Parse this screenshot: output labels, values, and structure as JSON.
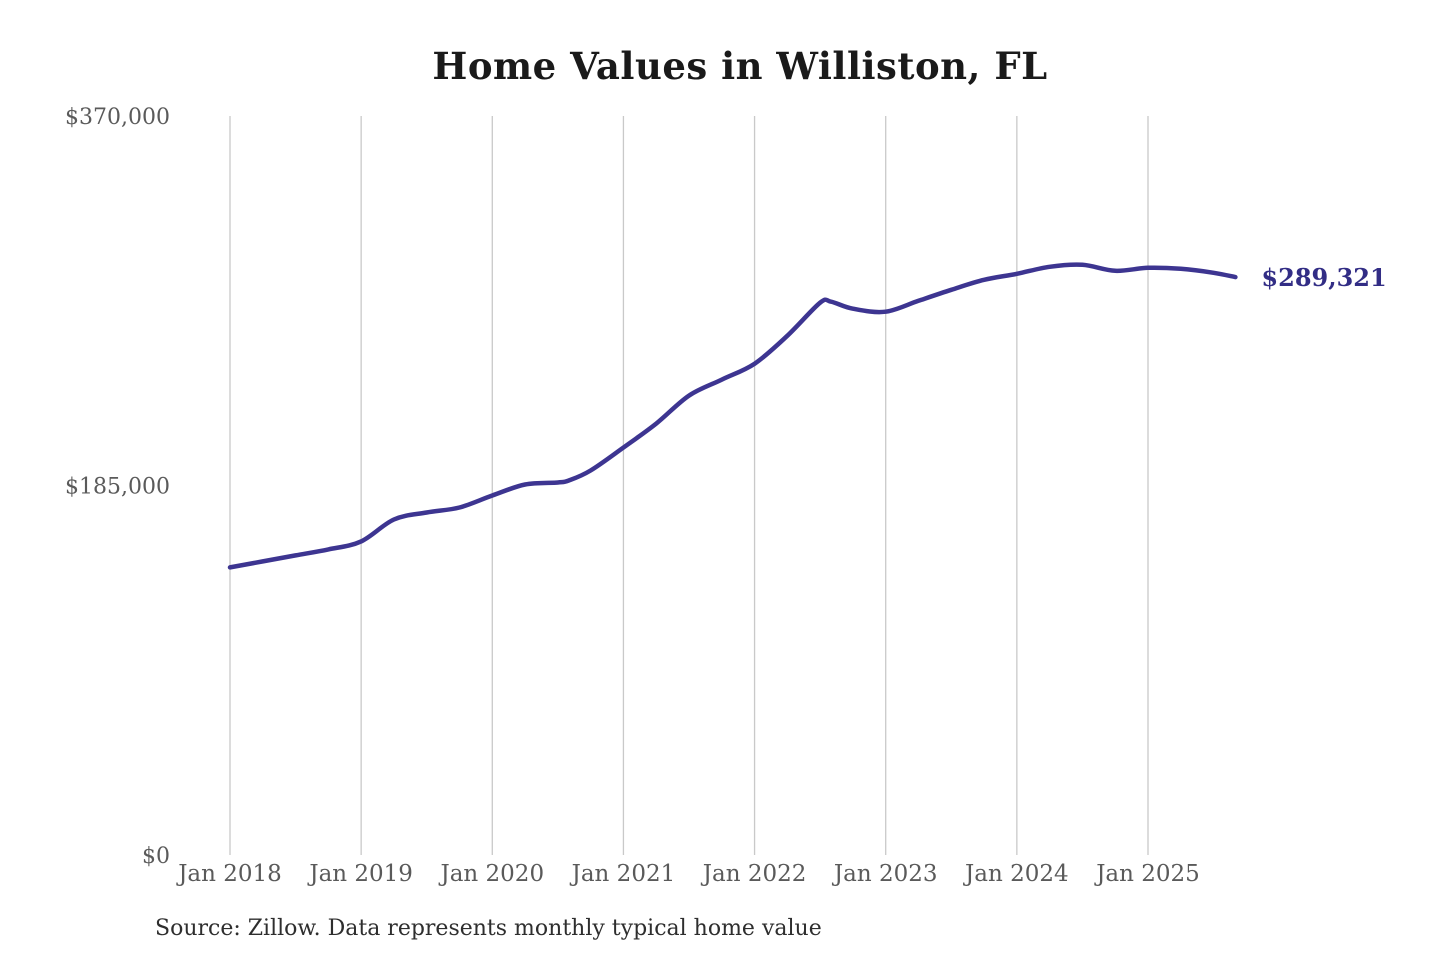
{
  "colors": {
    "background": "#ffffff",
    "title": "#1a1a1a",
    "tick_label": "#5a5a5a",
    "gridline": "#c9c9c9",
    "line": "#3d3591",
    "end_label": "#322d85",
    "source": "#2e2e2e"
  },
  "chart_data": {
    "type": "line",
    "title": "Home Values in Williston, FL",
    "xlabel": "",
    "ylabel": "",
    "ylim": [
      0,
      370000
    ],
    "x_range": [
      "2018-01",
      "2025-09"
    ],
    "grid": "vertical-only",
    "legend": "none",
    "line_color": "#3d3591",
    "end_label": {
      "text": "$289,321",
      "color": "#322d85"
    },
    "source_note": "Source: Zillow. Data represents monthly typical home value",
    "y_ticks": [
      {
        "label": "$370,000",
        "value": 370000
      },
      {
        "label": "$185,000",
        "value": 185000
      },
      {
        "label": "$0",
        "value": 0
      }
    ],
    "x_ticks": [
      {
        "label": "Jan 2018",
        "date": "2018-01"
      },
      {
        "label": "Jan 2019",
        "date": "2019-01"
      },
      {
        "label": "Jan 2020",
        "date": "2020-01"
      },
      {
        "label": "Jan 2021",
        "date": "2021-01"
      },
      {
        "label": "Jan 2022",
        "date": "2022-01"
      },
      {
        "label": "Jan 2023",
        "date": "2023-01"
      },
      {
        "label": "Jan 2024",
        "date": "2024-01"
      },
      {
        "label": "Jan 2025",
        "date": "2025-01"
      }
    ],
    "series": [
      {
        "name": "Monthly typical home value",
        "points": [
          [
            "2018-01",
            144000
          ],
          [
            "2018-04",
            147000
          ],
          [
            "2018-07",
            150000
          ],
          [
            "2018-10",
            153000
          ],
          [
            "2019-01",
            157000
          ],
          [
            "2019-04",
            168000
          ],
          [
            "2019-07",
            171500
          ],
          [
            "2019-10",
            174000
          ],
          [
            "2020-01",
            180000
          ],
          [
            "2020-04",
            185500
          ],
          [
            "2020-07",
            186500
          ],
          [
            "2020-08",
            187500
          ],
          [
            "2020-10",
            192500
          ],
          [
            "2021-01",
            204000
          ],
          [
            "2021-04",
            216000
          ],
          [
            "2021-07",
            230000
          ],
          [
            "2021-10",
            238000
          ],
          [
            "2022-01",
            246000
          ],
          [
            "2022-04",
            260000
          ],
          [
            "2022-07",
            276500
          ],
          [
            "2022-08",
            277000
          ],
          [
            "2022-10",
            273500
          ],
          [
            "2023-01",
            272000
          ],
          [
            "2023-04",
            277500
          ],
          [
            "2023-07",
            283000
          ],
          [
            "2023-10",
            288000
          ],
          [
            "2024-01",
            291000
          ],
          [
            "2024-04",
            294500
          ],
          [
            "2024-07",
            295500
          ],
          [
            "2024-10",
            292500
          ],
          [
            "2025-01",
            294000
          ],
          [
            "2025-04",
            293500
          ],
          [
            "2025-07",
            291500
          ],
          [
            "2025-09",
            289321
          ]
        ]
      }
    ]
  }
}
